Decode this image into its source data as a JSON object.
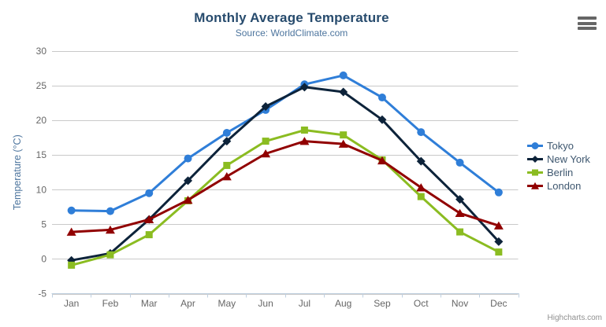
{
  "chart": {
    "title": "Monthly Average Temperature",
    "subtitle": "Source: WorldClimate.com",
    "y_axis_title": "Temperature (°C)",
    "credits": "Highcharts.com",
    "colors": {
      "title": "#274b6d",
      "subtitle": "#4d759e",
      "axis_title": "#4d759e",
      "axis_labels": "#666666",
      "grid": "#c9c9c9",
      "axis_line": "#c0d0e0",
      "legend_text": "#3e576f",
      "credits": "#909090",
      "background": "#ffffff"
    }
  },
  "chart_data": {
    "type": "line",
    "title": "Monthly Average Temperature",
    "subtitle": "Source: WorldClimate.com",
    "xlabel": "",
    "ylabel": "Temperature (°C)",
    "ylim": [
      -5,
      30
    ],
    "yticks": [
      -5,
      0,
      5,
      10,
      15,
      20,
      25,
      30
    ],
    "grid": true,
    "legend_position": "right",
    "categories": [
      "Jan",
      "Feb",
      "Mar",
      "Apr",
      "May",
      "Jun",
      "Jul",
      "Aug",
      "Sep",
      "Oct",
      "Nov",
      "Dec"
    ],
    "series": [
      {
        "name": "Tokyo",
        "color": "#2f7ed8",
        "marker": "circle",
        "values": [
          7.0,
          6.9,
          9.5,
          14.5,
          18.2,
          21.5,
          25.2,
          26.5,
          23.3,
          18.3,
          13.9,
          9.6
        ]
      },
      {
        "name": "New York",
        "color": "#0d233a",
        "marker": "diamond",
        "values": [
          -0.2,
          0.8,
          5.7,
          11.3,
          17.0,
          22.0,
          24.8,
          24.1,
          20.1,
          14.1,
          8.6,
          2.5
        ]
      },
      {
        "name": "Berlin",
        "color": "#8bbc21",
        "marker": "square",
        "values": [
          -0.9,
          0.6,
          3.5,
          8.4,
          13.5,
          17.0,
          18.6,
          17.9,
          14.3,
          9.0,
          3.9,
          1.0
        ]
      },
      {
        "name": "London",
        "color": "#910000",
        "marker": "triangle",
        "values": [
          3.9,
          4.2,
          5.7,
          8.5,
          11.9,
          15.2,
          17.0,
          16.6,
          14.2,
          10.3,
          6.6,
          4.8
        ]
      }
    ]
  }
}
